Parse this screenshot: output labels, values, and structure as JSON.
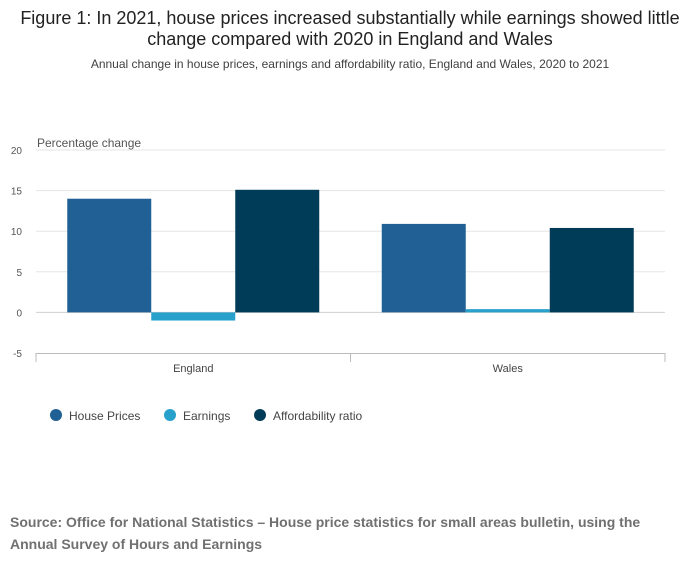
{
  "chart_data": {
    "type": "bar",
    "title": "Figure 1: In 2021, house prices increased substantially while earnings showed little change compared with 2020 in England and Wales",
    "subtitle": "Annual change in house prices, earnings and affordability ratio, England and Wales, 2020 to 2021",
    "ylabel": "Percentage change",
    "xlabel": "",
    "ylim": [
      -5,
      20
    ],
    "yticks": [
      20,
      15,
      10,
      5,
      0,
      -5
    ],
    "categories": [
      "England",
      "Wales"
    ],
    "series": [
      {
        "name": "House Prices",
        "values": [
          14.0,
          10.9
        ],
        "color": "#206095"
      },
      {
        "name": "Earnings",
        "values": [
          -1.0,
          0.4
        ],
        "color": "#27a0cc"
      },
      {
        "name": "Affordability ratio",
        "values": [
          15.1,
          10.4
        ],
        "color": "#003c57"
      }
    ],
    "grid": true,
    "legend_position": "bottom-left"
  },
  "source": "Source: Office for National Statistics –  House price statistics for small areas bulletin, using the Annual Survey of Hours and Earnings"
}
